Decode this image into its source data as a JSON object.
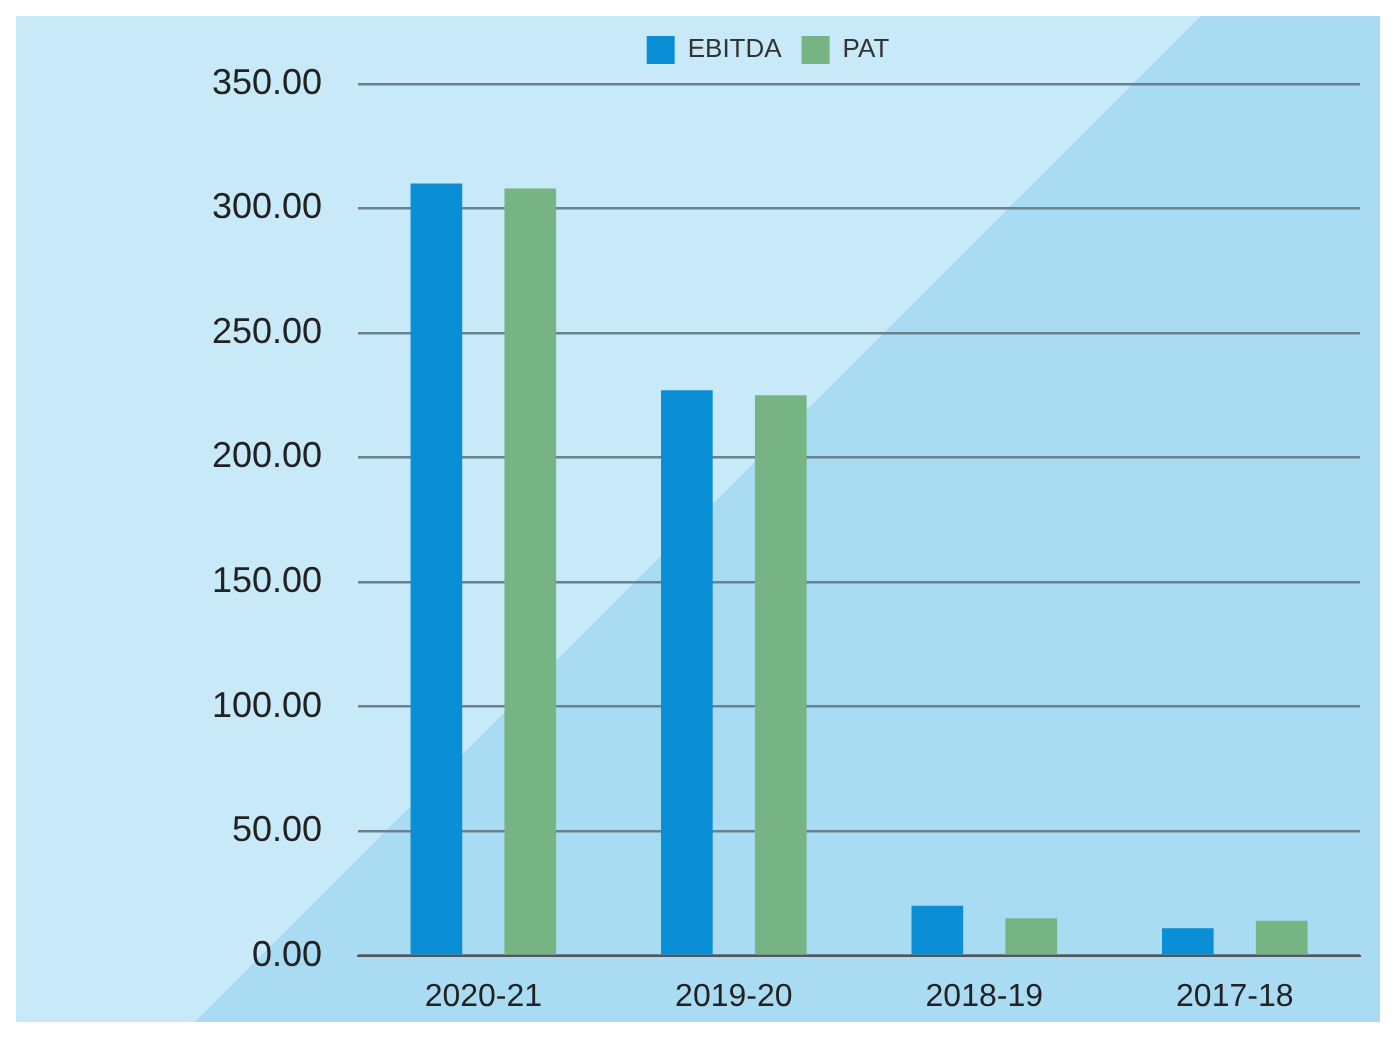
{
  "chart_data": {
    "type": "bar",
    "categories": [
      "2020-21",
      "2019-20",
      "2018-19",
      "2017-18"
    ],
    "series": [
      {
        "name": "EBITDA",
        "color": "#0a8fd6",
        "values": [
          310,
          227,
          20,
          11
        ]
      },
      {
        "name": "PAT",
        "color": "#76b483",
        "values": [
          308,
          225,
          15,
          14
        ]
      }
    ],
    "ylim": [
      0,
      350
    ],
    "yticks": [
      {
        "value": 0,
        "label": "0.00"
      },
      {
        "value": 50,
        "label": "50.00"
      },
      {
        "value": 100,
        "label": "100.00"
      },
      {
        "value": 150,
        "label": "150.00"
      },
      {
        "value": 200,
        "label": "200.00"
      },
      {
        "value": 250,
        "label": "250.00"
      },
      {
        "value": 300,
        "label": "300.00"
      },
      {
        "value": 350,
        "label": "350.00"
      }
    ],
    "grid": "y",
    "legend": "top"
  }
}
